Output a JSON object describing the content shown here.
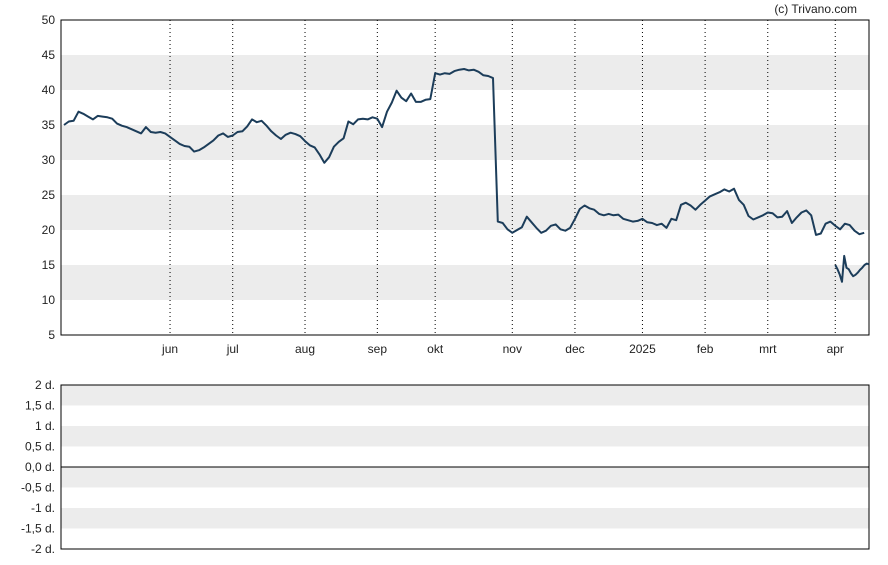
{
  "credit": "(c) Trivano.com",
  "chart_data": [
    {
      "type": "line",
      "title": "",
      "xlabel": "",
      "ylabel": "",
      "ylim": [
        5,
        50
      ],
      "yticks": [
        "5",
        "10",
        "15",
        "20",
        "25",
        "30",
        "35",
        "40",
        "45",
        "50"
      ],
      "month_labels": [
        "jun",
        "jul",
        "aug",
        "sep",
        "okt",
        "nov",
        "dec",
        "2025",
        "feb",
        "mrt",
        "apr"
      ],
      "month_positions": [
        22,
        35,
        50,
        65,
        77,
        93,
        106,
        120,
        133,
        146,
        160
      ],
      "x_max": 167,
      "grid": {
        "vertical": "dotted",
        "horizontal_bands": true
      },
      "line_color": "#1c3d5a",
      "series": [
        {
          "values": [
            35.0,
            35.5,
            35.6,
            36.9,
            36.6,
            36.2,
            35.8,
            36.3,
            36.2,
            36.1,
            35.9,
            35.2,
            34.9,
            34.7,
            34.4,
            34.1,
            33.8,
            34.7,
            34.0,
            33.9,
            34.0,
            33.8,
            33.3,
            32.8,
            32.3,
            32.0,
            31.9,
            31.2,
            31.4,
            31.8,
            32.3,
            32.8,
            33.5,
            33.8,
            33.3,
            33.5,
            34.0,
            34.1,
            34.8,
            35.8,
            35.4,
            35.6,
            34.9,
            34.1,
            33.5,
            33.0,
            33.6,
            33.9,
            33.7,
            33.4,
            32.7,
            32.1,
            31.8,
            30.8,
            29.6,
            30.4,
            31.9,
            32.6,
            33.1,
            35.5,
            35.1,
            35.8,
            35.9,
            35.8,
            36.1,
            35.9,
            34.7,
            36.9,
            38.2,
            39.9,
            38.9,
            38.4,
            39.5,
            38.3,
            38.3,
            38.6,
            38.7,
            42.4,
            42.2,
            42.4,
            42.3,
            42.7,
            42.9,
            43.0,
            42.8,
            42.9,
            42.6,
            42.1,
            42.0,
            41.7,
            21.2,
            21.0,
            20.1,
            19.6,
            20.0,
            20.4,
            21.9,
            21.1,
            20.3,
            19.6,
            19.9,
            20.6,
            20.8,
            20.1,
            19.9,
            20.3,
            21.6,
            23.0,
            23.5,
            23.1,
            22.9,
            22.3,
            22.1,
            22.3,
            22.1,
            22.2,
            21.6,
            21.4,
            21.2,
            21.3,
            21.6,
            21.1,
            21.0,
            20.7,
            20.9,
            20.3,
            21.6,
            21.4,
            23.6,
            23.9,
            23.5,
            22.9,
            23.6,
            24.2,
            24.8,
            25.1,
            25.4,
            25.8,
            25.5,
            25.9,
            24.3,
            23.6,
            22.0,
            21.5,
            21.8,
            22.1,
            22.5,
            22.4,
            21.8,
            21.9,
            22.7,
            21.0,
            21.8,
            22.5,
            22.8,
            22.1,
            19.3,
            19.5,
            20.9,
            21.2,
            20.6,
            20.1,
            20.9,
            20.7,
            19.9,
            19.4,
            19.6
          ]
        },
        {
          "values": [
            15.0,
            14.4,
            13.6,
            12.6,
            16.3,
            14.6,
            14.4,
            13.8,
            13.4,
            13.6,
            13.9,
            14.3,
            14.6,
            15.0,
            15.2,
            15.1
          ],
          "x_start": 160,
          "x_step": 0.466
        }
      ]
    },
    {
      "type": "line",
      "title": "",
      "ylim": [
        -2,
        2
      ],
      "yticks": [
        "-2 d.",
        "-1,5 d.",
        "-1 d.",
        "-0,5 d.",
        "0,0 d.",
        "0,5 d.",
        "1 d.",
        "1,5 d.",
        "2 d."
      ],
      "reference_line": 0,
      "series": []
    }
  ]
}
